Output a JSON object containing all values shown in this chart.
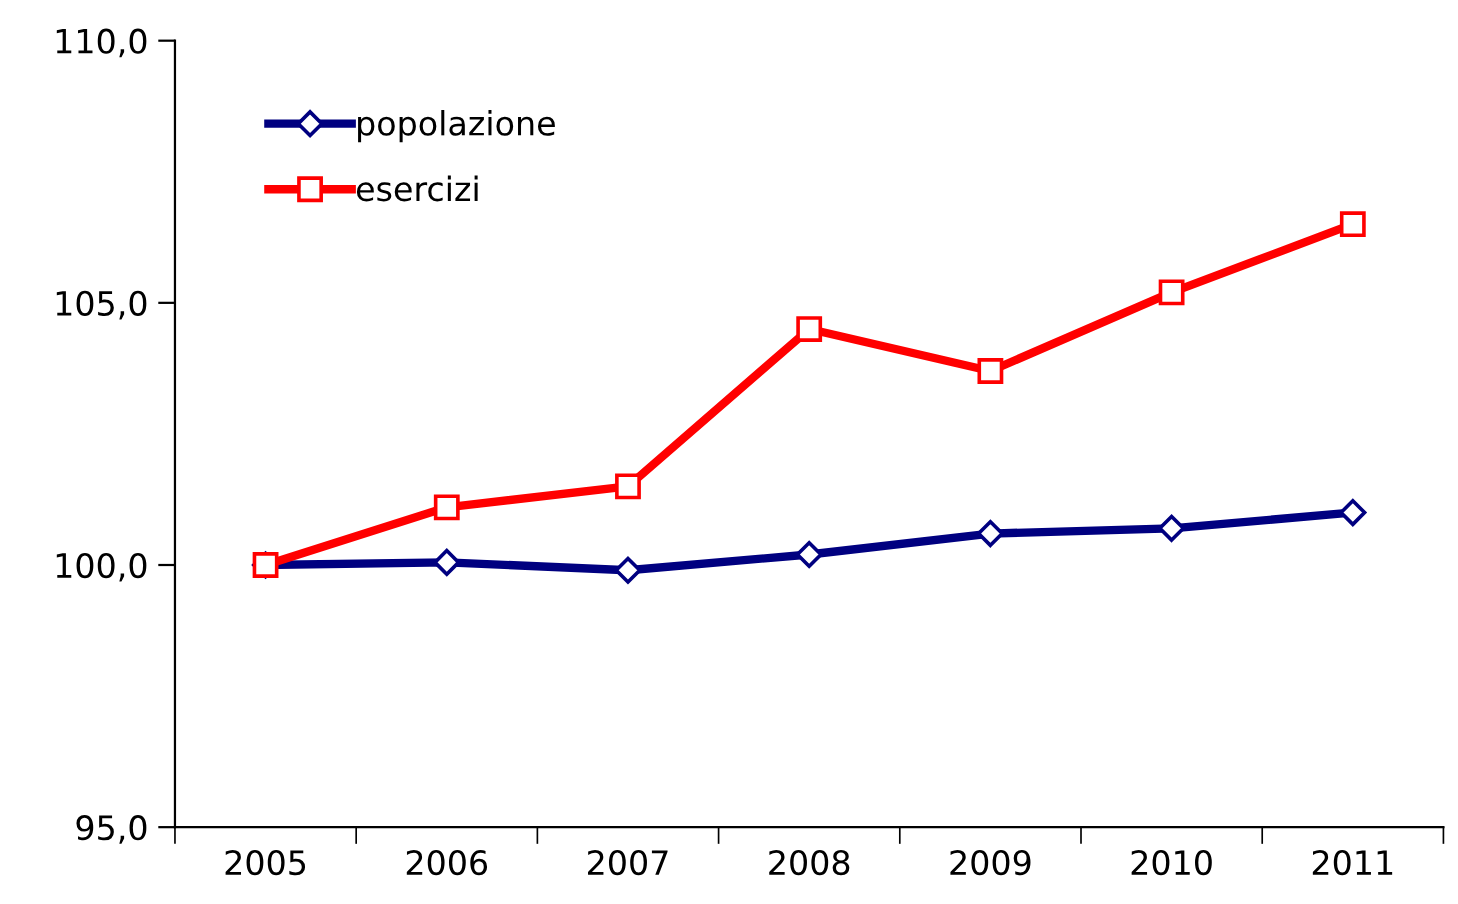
{
  "chart_data": {
    "type": "line",
    "categories": [
      "2005",
      "2006",
      "2007",
      "2008",
      "2009",
      "2010",
      "2011"
    ],
    "series": [
      {
        "name": "popolazione",
        "color": "#000080",
        "marker": "diamond",
        "values": [
          100.0,
          100.05,
          99.9,
          100.2,
          100.6,
          100.7,
          101.0
        ]
      },
      {
        "name": "esercizi",
        "color": "#ff0000",
        "marker": "square",
        "values": [
          100.0,
          101.1,
          101.5,
          104.5,
          103.7,
          105.2,
          106.5
        ]
      }
    ],
    "ylim": [
      95,
      110
    ],
    "yticks": [
      {
        "value": 95,
        "label": "95,0"
      },
      {
        "value": 100,
        "label": "100,0"
      },
      {
        "value": 105,
        "label": "105,0"
      },
      {
        "value": 110,
        "label": "110,0"
      }
    ],
    "legend": "top left",
    "grid": false,
    "line_style": "solid"
  }
}
